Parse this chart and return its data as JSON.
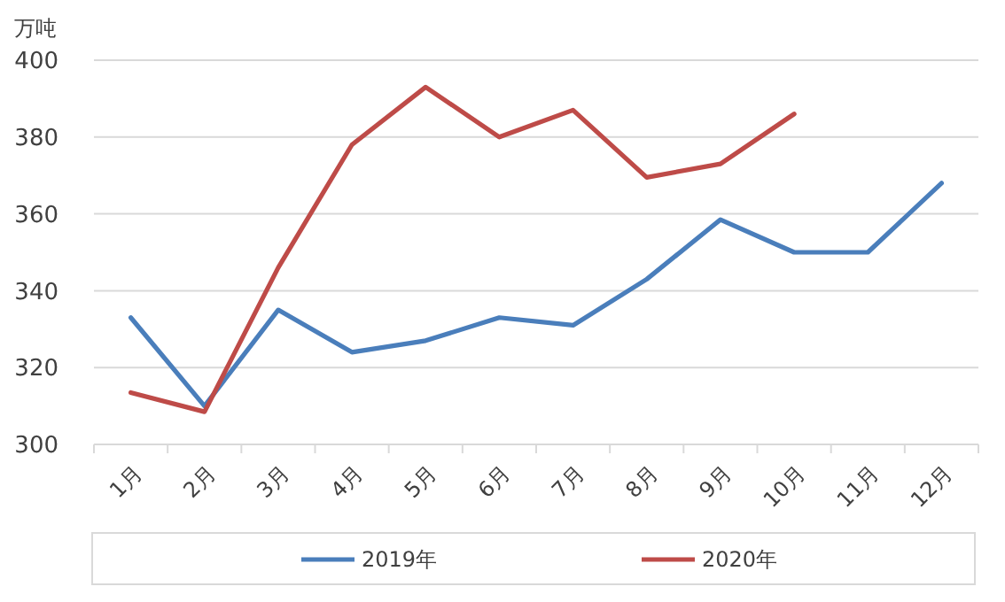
{
  "chart_data": {
    "type": "line",
    "ylabel": "万吨",
    "categories": [
      "1月",
      "2月",
      "3月",
      "4月",
      "5月",
      "6月",
      "7月",
      "8月",
      "9月",
      "10月",
      "11月",
      "12月"
    ],
    "series": [
      {
        "name": "2019年",
        "color": "#4a7ebb",
        "values": [
          333,
          310,
          335,
          324,
          327,
          333,
          331,
          343,
          358.5,
          350,
          350,
          368
        ]
      },
      {
        "name": "2020年",
        "color": "#be4b48",
        "values": [
          313.5,
          308.5,
          346,
          378,
          393,
          380,
          387,
          369.5,
          373,
          386,
          null,
          null
        ]
      }
    ],
    "ylim": [
      300,
      400
    ],
    "yticks": [
      300,
      320,
      340,
      360,
      380,
      400
    ],
    "grid": "y",
    "legend": "bottom",
    "marker": "none",
    "line_style": "solid"
  }
}
